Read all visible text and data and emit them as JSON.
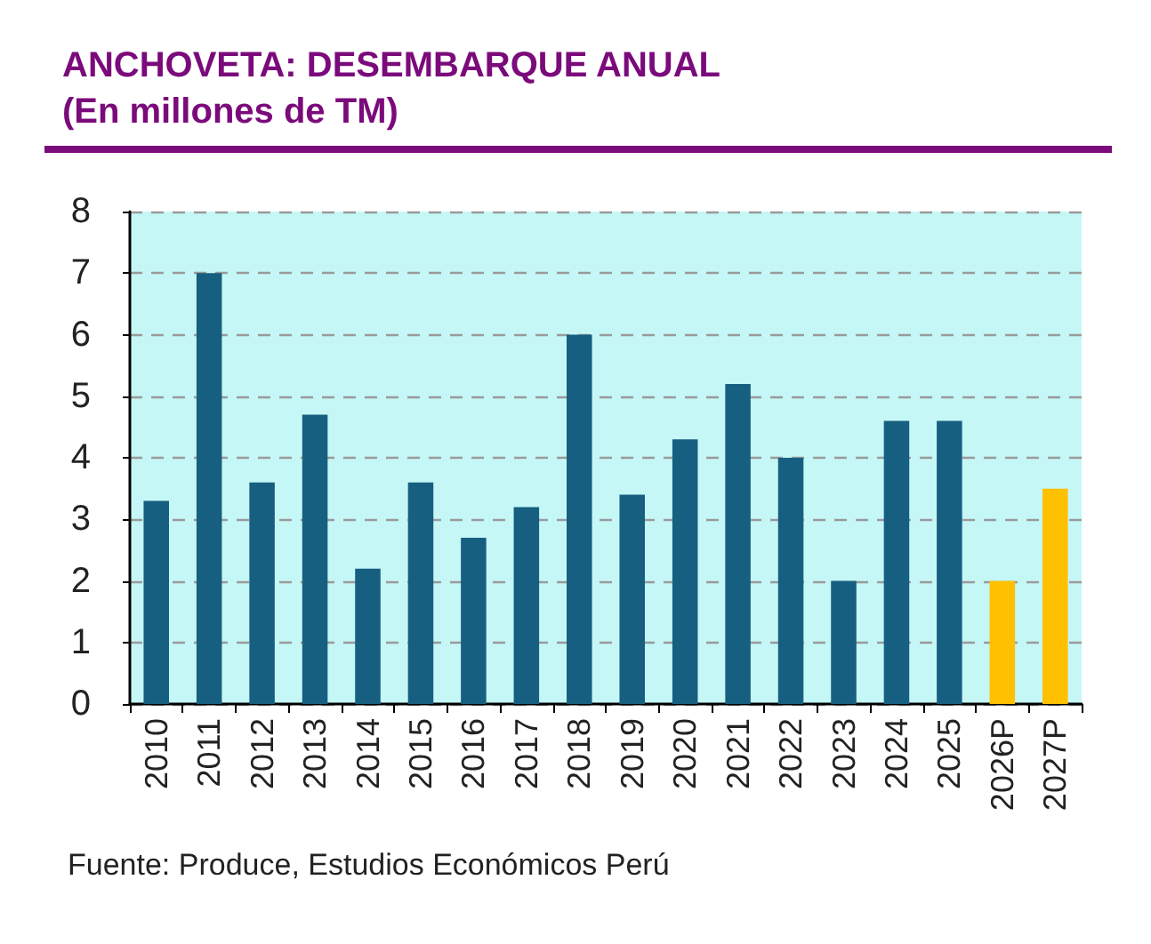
{
  "chart_data": {
    "type": "bar",
    "title": "ANCHOVETA: DESEMBARQUE ANUAL",
    "subtitle": "(En millones de TM)",
    "categories": [
      "2010",
      "2011",
      "2012",
      "2013",
      "2014",
      "2015",
      "2016",
      "2017",
      "2018",
      "2019",
      "2020",
      "2021",
      "2022",
      "2023",
      "2024",
      "2025",
      "2026P",
      "2027P"
    ],
    "values": [
      3.3,
      7.0,
      3.6,
      4.7,
      2.2,
      3.6,
      2.7,
      3.2,
      6.0,
      3.4,
      4.3,
      5.2,
      4.0,
      2.0,
      4.6,
      4.6,
      2.0,
      3.5
    ],
    "colors": [
      "#175f80",
      "#175f80",
      "#175f80",
      "#175f80",
      "#175f80",
      "#175f80",
      "#175f80",
      "#175f80",
      "#175f80",
      "#175f80",
      "#175f80",
      "#175f80",
      "#175f80",
      "#175f80",
      "#175f80",
      "#175f80",
      "#ffc000",
      "#ffc000"
    ],
    "ylim": [
      0,
      8
    ],
    "yticks": [
      0,
      1,
      2,
      3,
      4,
      5,
      6,
      7,
      8
    ],
    "grid": "y",
    "annotations": [
      "Fuente: Produce, Estudios Económicos Perú"
    ]
  }
}
